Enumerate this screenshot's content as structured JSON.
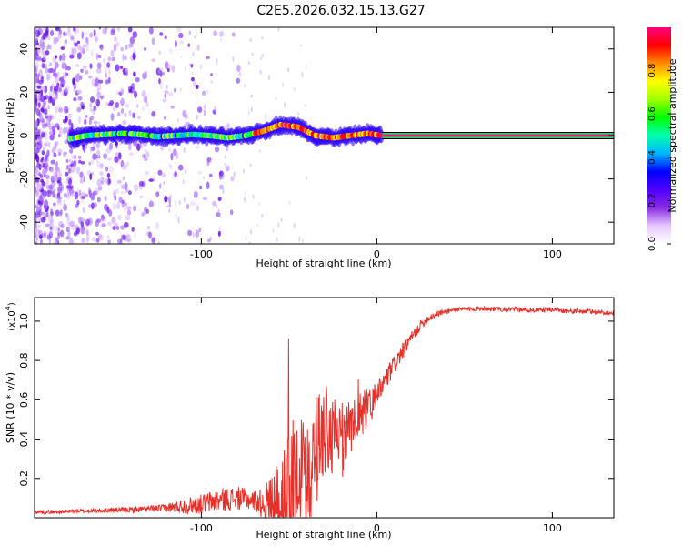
{
  "title": "C2E5.2026.032.15.13.G27",
  "colors": {
    "trace": "#e8302a",
    "axis": "#000000",
    "colormap": [
      "#ffffff",
      "#e6c8ff",
      "#8a2be2",
      "#5000ff",
      "#0000ff",
      "#00b4ff",
      "#00ffb0",
      "#00ff00",
      "#a0ff00",
      "#ffff00",
      "#ff8c00",
      "#ff0000",
      "#ff0080"
    ]
  },
  "chart_data": [
    {
      "type": "heatmap",
      "name": "spectrogram",
      "xlabel": "Height of straight line (km)",
      "ylabel": "Frequency (Hz)",
      "xlim": [
        -195,
        135
      ],
      "ylim": [
        -50,
        50
      ],
      "xticks": [
        -100,
        0,
        100
      ],
      "xtick_labels": [
        "-100",
        "0",
        "100"
      ],
      "yticks": [
        -40,
        -20,
        0,
        20,
        40
      ],
      "ytick_labels": [
        "-40",
        "-20",
        "0",
        "20",
        "40"
      ],
      "colorbar": {
        "label": "Normalized spectral amplitude",
        "range": [
          0,
          1
        ],
        "ticks": [
          0.0,
          0.2,
          0.4,
          0.6,
          0.8
        ],
        "tick_labels": [
          "0.0",
          "0.2",
          "0.4",
          "0.6",
          "0.8"
        ]
      },
      "ridge": {
        "x": [
          -175,
          -165,
          -155,
          -145,
          -135,
          -125,
          -115,
          -105,
          -95,
          -85,
          -75,
          -65,
          -55,
          -45,
          -35,
          -25,
          -15,
          -5,
          3
        ],
        "freq": [
          -1.5,
          0,
          0.5,
          1,
          0.5,
          -0.5,
          0,
          0.5,
          0,
          -1,
          0,
          2,
          5,
          4,
          0,
          -1,
          0,
          1,
          0
        ]
      },
      "carrier": {
        "x_start": 3,
        "x_end": 135,
        "freq": 0
      }
    },
    {
      "type": "line",
      "name": "snr",
      "xlabel": "Height of straight line (km)",
      "ylabel": "SNR (10 * v/v)",
      "y_multiplier": "(x10",
      "y_multiplier_exp": "4",
      "y_multiplier_close": ")",
      "xlim": [
        -195,
        135
      ],
      "ylim": [
        0,
        1.12
      ],
      "xticks": [
        -100,
        0,
        100
      ],
      "xtick_labels": [
        "-100",
        "0",
        "100"
      ],
      "yticks": [
        0.2,
        0.4,
        0.6,
        0.8,
        1.0
      ],
      "ytick_labels": [
        "0.2",
        "0.4",
        "0.6",
        "0.8",
        "1.0"
      ],
      "series": [
        {
          "name": "SNR",
          "x": [
            -195,
            -180,
            -170,
            -160,
            -150,
            -140,
            -130,
            -120,
            -110,
            -100,
            -90,
            -80,
            -70,
            -65,
            -60,
            -55,
            -50,
            -45,
            -40,
            -35,
            -30,
            -25,
            -20,
            -15,
            -10,
            -5,
            0,
            5,
            10,
            15,
            20,
            25,
            30,
            35,
            40,
            45,
            50,
            60,
            70,
            80,
            90,
            100,
            110,
            120,
            135
          ],
          "y": [
            0.03,
            0.03,
            0.035,
            0.035,
            0.04,
            0.04,
            0.045,
            0.05,
            0.06,
            0.07,
            0.09,
            0.1,
            0.09,
            0.07,
            0.08,
            0.12,
            0.2,
            0.28,
            0.34,
            0.4,
            0.42,
            0.45,
            0.48,
            0.5,
            0.53,
            0.58,
            0.62,
            0.7,
            0.78,
            0.85,
            0.92,
            0.98,
            1.02,
            1.04,
            1.05,
            1.06,
            1.06,
            1.065,
            1.06,
            1.06,
            1.055,
            1.06,
            1.05,
            1.05,
            1.04
          ],
          "noise": [
            0.01,
            0.01,
            0.01,
            0.012,
            0.012,
            0.014,
            0.016,
            0.02,
            0.04,
            0.05,
            0.06,
            0.06,
            0.05,
            0.08,
            0.15,
            0.22,
            0.28,
            0.3,
            0.3,
            0.28,
            0.25,
            0.22,
            0.18,
            0.14,
            0.1,
            0.08,
            0.07,
            0.06,
            0.05,
            0.04,
            0.03,
            0.025,
            0.02,
            0.015,
            0.012,
            0.012,
            0.012,
            0.012,
            0.012,
            0.012,
            0.012,
            0.012,
            0.012,
            0.012,
            0.012
          ]
        }
      ]
    }
  ]
}
